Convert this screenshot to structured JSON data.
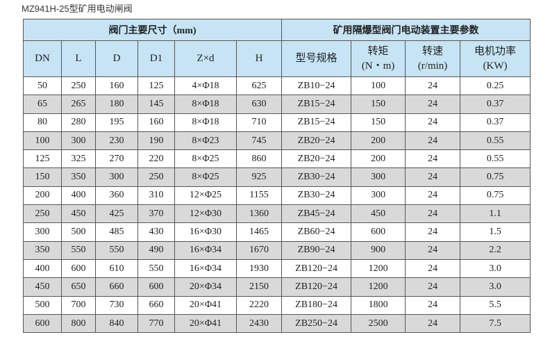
{
  "title": "MZ941H-25型矿用电动闸阀",
  "table": {
    "group_headers": [
      "阀门主要尺寸（mm)",
      "矿用隔爆型阀门电动装置主要参数"
    ],
    "columns": [
      "DN",
      "L",
      "D",
      "D1",
      "Z×d",
      "H",
      "型号规格",
      "转矩\n(N・m)",
      "转速\n(r/min)",
      "电机功率\n(KW)"
    ],
    "rows": [
      [
        "50",
        "250",
        "160",
        "125",
        "4×Φ18",
        "625",
        "ZB10−24",
        "100",
        "24",
        "0.25"
      ],
      [
        "65",
        "265",
        "180",
        "145",
        "8×Φ18",
        "630",
        "ZB15−24",
        "150",
        "24",
        "0.37"
      ],
      [
        "80",
        "280",
        "195",
        "160",
        "8×Φ18",
        "710",
        "ZB15−24",
        "150",
        "24",
        "0.37"
      ],
      [
        "100",
        "300",
        "230",
        "190",
        "8×Φ23",
        "745",
        "ZB20−24",
        "200",
        "24",
        "0.55"
      ],
      [
        "125",
        "325",
        "270",
        "220",
        "8×Φ25",
        "860",
        "ZB20−24",
        "200",
        "24",
        "0.55"
      ],
      [
        "150",
        "350",
        "300",
        "250",
        "8×Φ25",
        "925",
        "ZB30−24",
        "300",
        "24",
        "0.75"
      ],
      [
        "200",
        "400",
        "360",
        "310",
        "12×Φ25",
        "1155",
        "ZB30−24",
        "300",
        "24",
        "0.75"
      ],
      [
        "250",
        "450",
        "425",
        "370",
        "12×Φ30",
        "1360",
        "ZB45−24",
        "450",
        "24",
        "1.1"
      ],
      [
        "300",
        "500",
        "485",
        "430",
        "16×Φ30",
        "1465",
        "ZB60−24",
        "600",
        "24",
        "1.5"
      ],
      [
        "350",
        "550",
        "550",
        "490",
        "16×Φ34",
        "1670",
        "ZB90−24",
        "900",
        "24",
        "2.2"
      ],
      [
        "400",
        "600",
        "610",
        "550",
        "16×Φ34",
        "1930",
        "ZB120−24",
        "1200",
        "24",
        "3.0"
      ],
      [
        "450",
        "650",
        "660",
        "600",
        "20×Φ34",
        "2150",
        "ZB120−24",
        "1200",
        "24",
        "3.0"
      ],
      [
        "500",
        "700",
        "730",
        "660",
        "20×Φ41",
        "2220",
        "ZB180−24",
        "1800",
        "24",
        "5.5"
      ],
      [
        "600",
        "800",
        "840",
        "770",
        "20×Φ41",
        "2430",
        "ZB250−24",
        "2500",
        "24",
        "7.5"
      ]
    ]
  },
  "colors": {
    "header_bg": "#c6e4f4",
    "alt_row_bg": "#d9d9d9"
  }
}
